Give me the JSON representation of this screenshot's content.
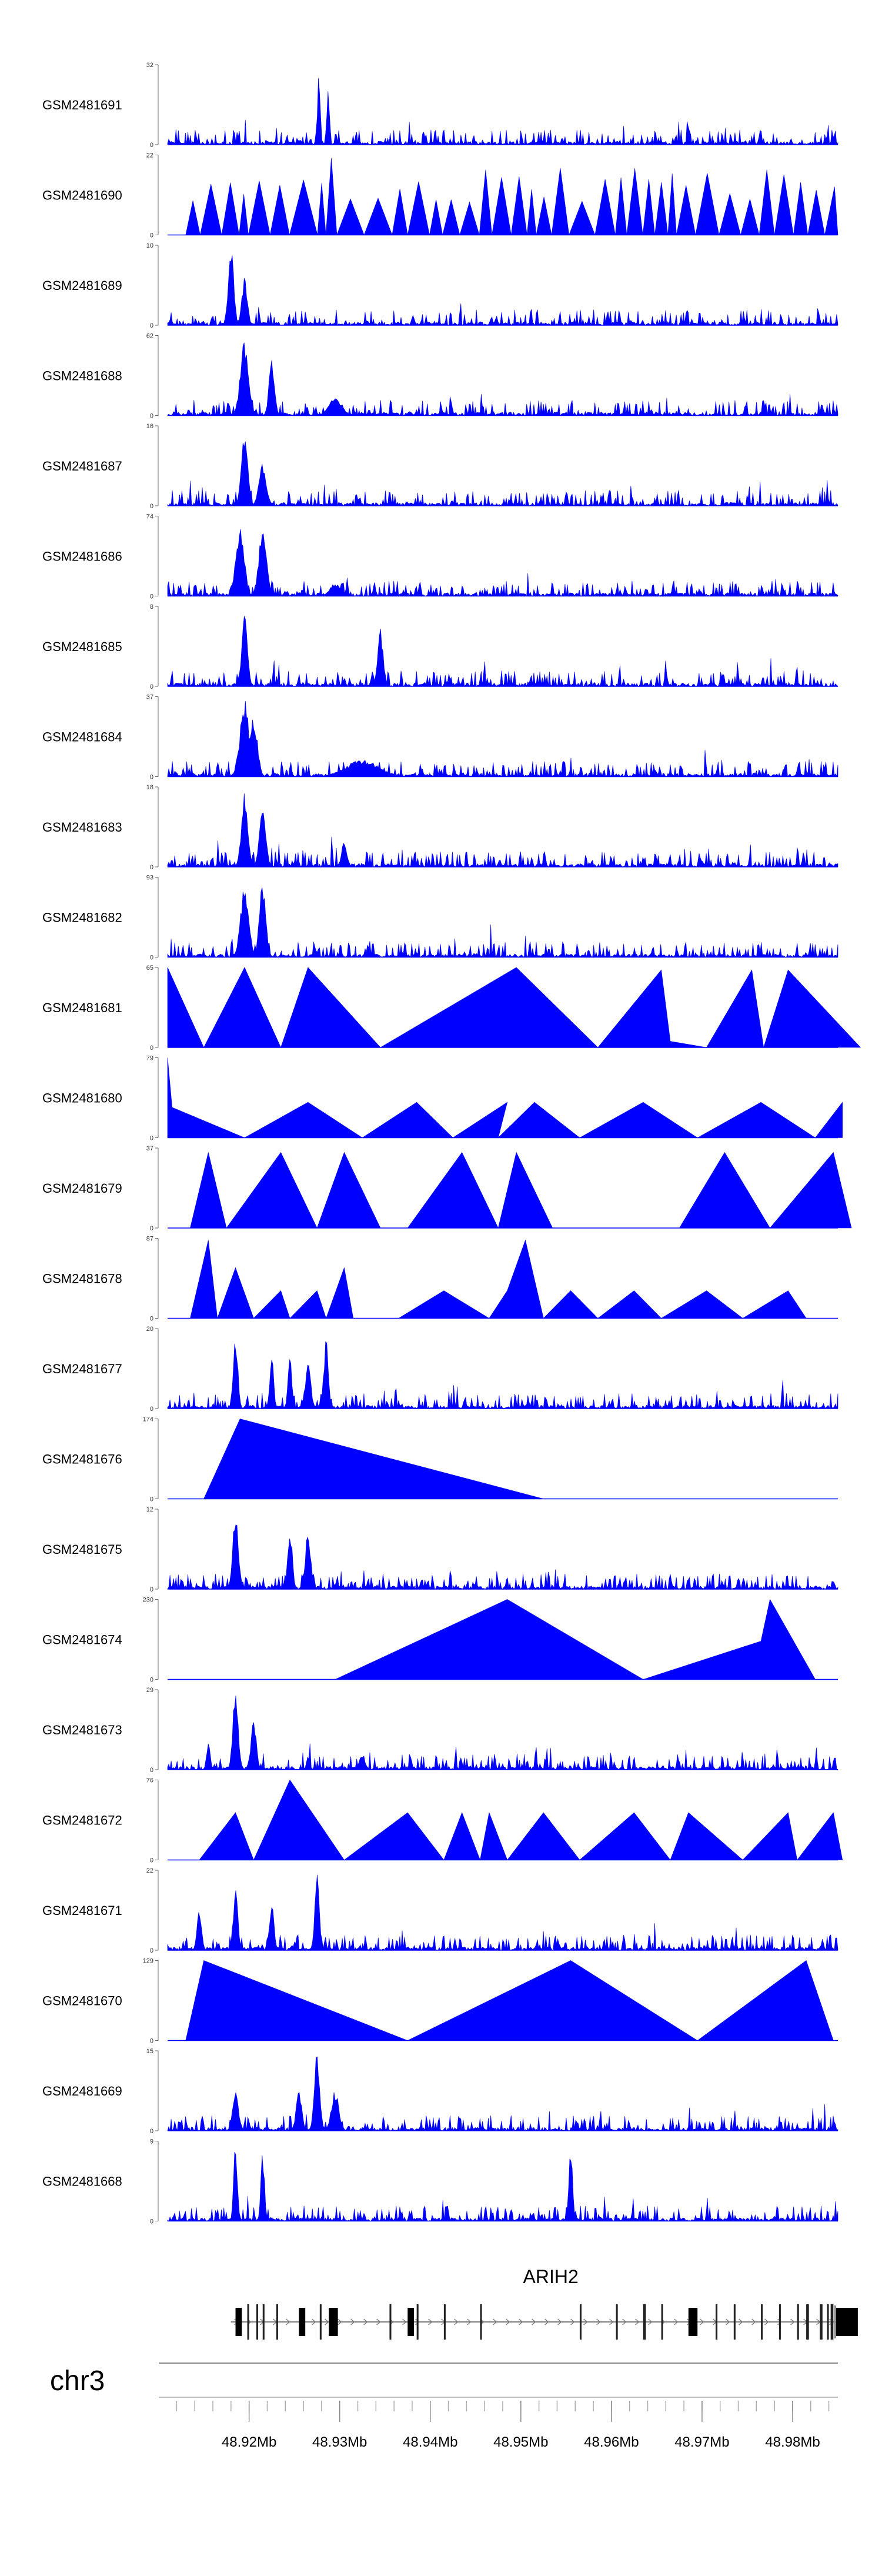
{
  "chart_data": {
    "type": "area",
    "fill_color": "#0000ff",
    "x_range_mb": [
      48.911,
      48.985
    ],
    "tracks": [
      {
        "id": "GSM2481691",
        "ymax": 32,
        "ymin": 0,
        "pattern": "dense",
        "peaks": [
          [
            48.9277,
            32,
            0.15
          ],
          [
            48.9287,
            22,
            0.15
          ],
          [
            48.9395,
            6,
            0.1
          ],
          [
            48.9685,
            8,
            0.15
          ],
          [
            48.9765,
            7,
            0.1
          ]
        ]
      },
      {
        "id": "GSM2481690",
        "ymax": 22,
        "ymin": 0,
        "pattern": "sparse",
        "start": 48.913,
        "end": 48.985,
        "peakMin": 8,
        "peakMax": 22
      },
      {
        "id": "GSM2481689",
        "ymax": 10,
        "ymin": 0,
        "pattern": "dense",
        "peaks": [
          [
            48.918,
            10,
            0.3
          ],
          [
            48.9195,
            6,
            0.3
          ]
        ]
      },
      {
        "id": "GSM2481688",
        "ymax": 62,
        "ymin": 0,
        "pattern": "dense",
        "peaks": [
          [
            48.9195,
            60,
            0.45
          ],
          [
            48.9225,
            44,
            0.3
          ],
          [
            48.9295,
            14,
            0.7
          ]
        ]
      },
      {
        "id": "GSM2481687",
        "ymax": 16,
        "ymin": 0,
        "pattern": "dense",
        "peaks": [
          [
            48.9195,
            16,
            0.35
          ],
          [
            48.9215,
            9,
            0.4
          ]
        ]
      },
      {
        "id": "GSM2481686",
        "ymax": 74,
        "ymin": 0,
        "pattern": "dense",
        "peaks": [
          [
            48.919,
            68,
            0.45
          ],
          [
            48.9215,
            72,
            0.4
          ],
          [
            48.9295,
            12,
            0.6
          ]
        ]
      },
      {
        "id": "GSM2481685",
        "ymax": 8,
        "ymin": 0,
        "pattern": "dense",
        "peaks": [
          [
            48.9195,
            8,
            0.3
          ],
          [
            48.9345,
            6,
            0.3
          ]
        ]
      },
      {
        "id": "GSM2481684",
        "ymax": 37,
        "ymin": 0,
        "pattern": "dense",
        "peaks": [
          [
            48.9195,
            36,
            0.5
          ],
          [
            48.9205,
            30,
            0.4
          ],
          [
            48.9325,
            8,
            1.8
          ]
        ]
      },
      {
        "id": "GSM2481683",
        "ymax": 18,
        "ymin": 0,
        "pattern": "dense",
        "peaks": [
          [
            48.9195,
            17,
            0.35
          ],
          [
            48.9215,
            13,
            0.35
          ],
          [
            48.9305,
            6,
            0.3
          ]
        ]
      },
      {
        "id": "GSM2481682",
        "ymax": 93,
        "ymin": 0,
        "pattern": "dense",
        "peaks": [
          [
            48.9195,
            85,
            0.45
          ],
          [
            48.9215,
            90,
            0.35
          ]
        ]
      },
      {
        "id": "GSM2481681",
        "ymax": 65,
        "ymin": 0,
        "pattern": "explicit",
        "points": [
          [
            48.911,
            65
          ],
          [
            48.915,
            0
          ],
          [
            48.9195,
            65
          ],
          [
            48.9235,
            0
          ],
          [
            48.9265,
            65
          ],
          [
            48.9345,
            0
          ],
          [
            48.9495,
            65
          ],
          [
            48.9585,
            0
          ],
          [
            48.9655,
            63
          ],
          [
            48.9665,
            5
          ],
          [
            48.9705,
            0
          ],
          [
            48.9755,
            63
          ],
          [
            48.9768,
            0
          ],
          [
            48.9795,
            63
          ],
          [
            48.9875,
            0
          ]
        ]
      },
      {
        "id": "GSM2481680",
        "ymax": 79,
        "ymin": 0,
        "pattern": "explicit",
        "points": [
          [
            48.911,
            79
          ],
          [
            48.9115,
            30
          ],
          [
            48.9195,
            0
          ],
          [
            48.9265,
            35
          ],
          [
            48.9325,
            0
          ],
          [
            48.9385,
            35
          ],
          [
            48.9425,
            0
          ],
          [
            48.9485,
            35
          ],
          [
            48.9475,
            0
          ],
          [
            48.9515,
            35
          ],
          [
            48.9565,
            0
          ],
          [
            48.9635,
            35
          ],
          [
            48.9695,
            0
          ],
          [
            48.9765,
            35
          ],
          [
            48.9825,
            0
          ],
          [
            48.9855,
            35
          ]
        ]
      },
      {
        "id": "GSM2481679",
        "ymax": 37,
        "ymin": 0,
        "pattern": "explicit",
        "points": [
          [
            48.9135,
            0
          ],
          [
            48.9155,
            35
          ],
          [
            48.9175,
            0
          ],
          [
            48.9235,
            35
          ],
          [
            48.9275,
            0
          ],
          [
            48.9305,
            35
          ],
          [
            48.9345,
            0
          ],
          [
            48.9375,
            0
          ],
          [
            48.9435,
            35
          ],
          [
            48.9475,
            0
          ],
          [
            48.9495,
            35
          ],
          [
            48.9535,
            0
          ],
          [
            48.9565,
            0
          ],
          [
            48.9675,
            0
          ],
          [
            48.9725,
            35
          ],
          [
            48.9775,
            0
          ],
          [
            48.9845,
            35
          ],
          [
            48.9865,
            0
          ]
        ]
      },
      {
        "id": "GSM2481678",
        "ymax": 87,
        "ymin": 0,
        "pattern": "explicit",
        "points": [
          [
            48.9135,
            0
          ],
          [
            48.9155,
            85
          ],
          [
            48.9165,
            0
          ],
          [
            48.9185,
            55
          ],
          [
            48.9205,
            0
          ],
          [
            48.9235,
            30
          ],
          [
            48.9245,
            0
          ],
          [
            48.9275,
            30
          ],
          [
            48.9285,
            0
          ],
          [
            48.9305,
            55
          ],
          [
            48.9315,
            0
          ],
          [
            48.9365,
            0
          ],
          [
            48.9415,
            30
          ],
          [
            48.9465,
            0
          ],
          [
            48.9485,
            30
          ],
          [
            48.9505,
            85
          ],
          [
            48.9525,
            0
          ],
          [
            48.9555,
            30
          ],
          [
            48.9585,
            0
          ],
          [
            48.9625,
            30
          ],
          [
            48.9655,
            0
          ],
          [
            48.9705,
            30
          ],
          [
            48.9745,
            0
          ],
          [
            48.9795,
            30
          ],
          [
            48.9815,
            0
          ]
        ]
      },
      {
        "id": "GSM2481677",
        "ymax": 20,
        "ymin": 0,
        "pattern": "dense",
        "peaks": [
          [
            48.9185,
            20,
            0.25
          ],
          [
            48.9225,
            16,
            0.2
          ],
          [
            48.9245,
            14,
            0.2
          ],
          [
            48.9285,
            18,
            0.25
          ],
          [
            48.9265,
            12,
            0.3
          ]
        ]
      },
      {
        "id": "GSM2481676",
        "ymax": 174,
        "ymin": 0,
        "pattern": "explicit",
        "points": [
          [
            48.915,
            0
          ],
          [
            48.919,
            174
          ],
          [
            48.9525,
            0
          ]
        ]
      },
      {
        "id": "GSM2481675",
        "ymax": 12,
        "ymin": 0,
        "pattern": "dense",
        "peaks": [
          [
            48.9185,
            12,
            0.3
          ],
          [
            48.9245,
            10,
            0.25
          ],
          [
            48.9265,
            9,
            0.3
          ]
        ]
      },
      {
        "id": "GSM2481674",
        "ymax": 230,
        "ymin": 0,
        "pattern": "explicit",
        "points": [
          [
            48.9295,
            0
          ],
          [
            48.9485,
            230
          ],
          [
            48.9635,
            0
          ],
          [
            48.9765,
            110
          ],
          [
            48.9775,
            230
          ],
          [
            48.9825,
            0
          ]
        ]
      },
      {
        "id": "GSM2481673",
        "ymax": 29,
        "ymin": 0,
        "pattern": "dense",
        "peaks": [
          [
            48.9185,
            29,
            0.3
          ],
          [
            48.9205,
            18,
            0.3
          ],
          [
            48.9155,
            10,
            0.2
          ],
          [
            48.9325,
            6,
            0.3
          ]
        ]
      },
      {
        "id": "GSM2481672",
        "ymax": 76,
        "ymin": 0,
        "pattern": "explicit",
        "points": [
          [
            48.9145,
            0
          ],
          [
            48.9185,
            45
          ],
          [
            48.9205,
            0
          ],
          [
            48.9245,
            76
          ],
          [
            48.9305,
            0
          ],
          [
            48.9375,
            45
          ],
          [
            48.9415,
            0
          ],
          [
            48.9435,
            45
          ],
          [
            48.9455,
            0
          ],
          [
            48.9465,
            45
          ],
          [
            48.9485,
            0
          ],
          [
            48.9525,
            45
          ],
          [
            48.9565,
            0
          ],
          [
            48.9625,
            45
          ],
          [
            48.9665,
            0
          ],
          [
            48.9685,
            45
          ],
          [
            48.9745,
            0
          ],
          [
            48.9795,
            45
          ],
          [
            48.9805,
            0
          ],
          [
            48.9845,
            45
          ],
          [
            48.9855,
            0
          ]
        ]
      },
      {
        "id": "GSM2481671",
        "ymax": 22,
        "ymin": 0,
        "pattern": "dense",
        "peaks": [
          [
            48.9185,
            18,
            0.25
          ],
          [
            48.9225,
            14,
            0.25
          ],
          [
            48.9275,
            22,
            0.25
          ],
          [
            48.9145,
            12,
            0.25
          ]
        ]
      },
      {
        "id": "GSM2481670",
        "ymax": 129,
        "ymin": 0,
        "pattern": "explicit",
        "points": [
          [
            48.913,
            0
          ],
          [
            48.915,
            129
          ],
          [
            48.9375,
            0
          ],
          [
            48.9555,
            129
          ],
          [
            48.9695,
            0
          ],
          [
            48.9815,
            129
          ],
          [
            48.9845,
            0
          ]
        ]
      },
      {
        "id": "GSM2481669",
        "ymax": 15,
        "ymin": 0,
        "pattern": "dense",
        "peaks": [
          [
            48.9185,
            9,
            0.3
          ],
          [
            48.9255,
            8,
            0.3
          ],
          [
            48.9275,
            15,
            0.3
          ],
          [
            48.9295,
            8,
            0.4
          ]
        ]
      },
      {
        "id": "GSM2481668",
        "ymax": 9,
        "ymin": 0,
        "pattern": "dense",
        "peaks": [
          [
            48.9185,
            9,
            0.2
          ],
          [
            48.9215,
            8,
            0.2
          ],
          [
            48.9555,
            9,
            0.2
          ]
        ]
      }
    ],
    "gene": {
      "name": "ARIH2",
      "strand": "+",
      "start_mb": 48.9185,
      "end_mb": 48.9855,
      "exons": [
        [
          48.9185,
          48.9192
        ],
        [
          48.9198,
          48.92
        ],
        [
          48.9208,
          48.921
        ],
        [
          48.9215,
          48.9217
        ],
        [
          48.923,
          48.9232
        ],
        [
          48.9255,
          48.9262
        ],
        [
          48.9278,
          48.928
        ],
        [
          48.9288,
          48.9298
        ],
        [
          48.9355,
          48.9357
        ],
        [
          48.9375,
          48.9382
        ],
        [
          48.9385,
          48.9387
        ],
        [
          48.9415,
          48.9417
        ],
        [
          48.9455,
          48.9457
        ],
        [
          48.9565,
          48.9567
        ],
        [
          48.9605,
          48.9607
        ],
        [
          48.9635,
          48.9638
        ],
        [
          48.9655,
          48.9657
        ],
        [
          48.9685,
          48.9695
        ],
        [
          48.9715,
          48.9717
        ],
        [
          48.9735,
          48.9737
        ],
        [
          48.9765,
          48.9767
        ],
        [
          48.9785,
          48.9787
        ],
        [
          48.9805,
          48.9807
        ],
        [
          48.9815,
          48.9818
        ],
        [
          48.983,
          48.9833
        ],
        [
          48.9838,
          48.984
        ],
        [
          48.9842,
          48.9845
        ],
        [
          48.9848,
          48.9872
        ]
      ]
    },
    "axis": {
      "chromosome": "chr3",
      "tick_labels": [
        "48.92Mb",
        "48.93Mb",
        "48.94Mb",
        "48.95Mb",
        "48.96Mb",
        "48.97Mb",
        "48.98Mb"
      ],
      "major_ticks_mb": [
        48.92,
        48.93,
        48.94,
        48.95,
        48.96,
        48.97,
        48.98
      ],
      "minor_tick_step_mb": 0.002
    }
  }
}
